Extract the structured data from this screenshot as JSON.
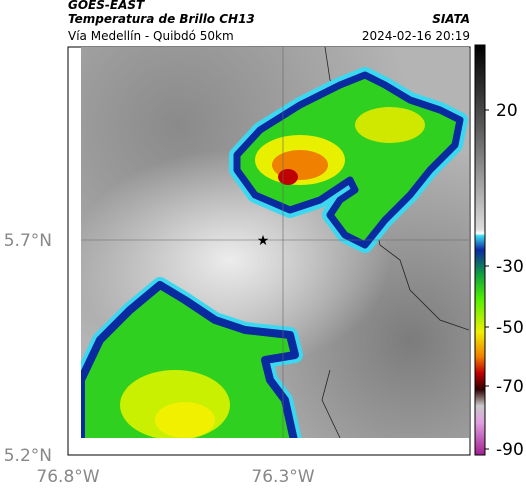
{
  "header": {
    "source": "GOES-EAST",
    "title": "Temperatura de Brillo CH13",
    "subtitle": "Vía Medellín - Quibdó 50km",
    "agency": "SIATA",
    "datetime": "2024-02-16 20:19"
  },
  "map": {
    "lat_labels": [
      "5.7°N",
      "5.2°N"
    ],
    "lon_labels": [
      "76.8°W",
      "76.3°W"
    ]
  },
  "colorbar": {
    "ticks": [
      "20",
      "-30",
      "-50",
      "-70",
      "-90"
    ]
  }
}
